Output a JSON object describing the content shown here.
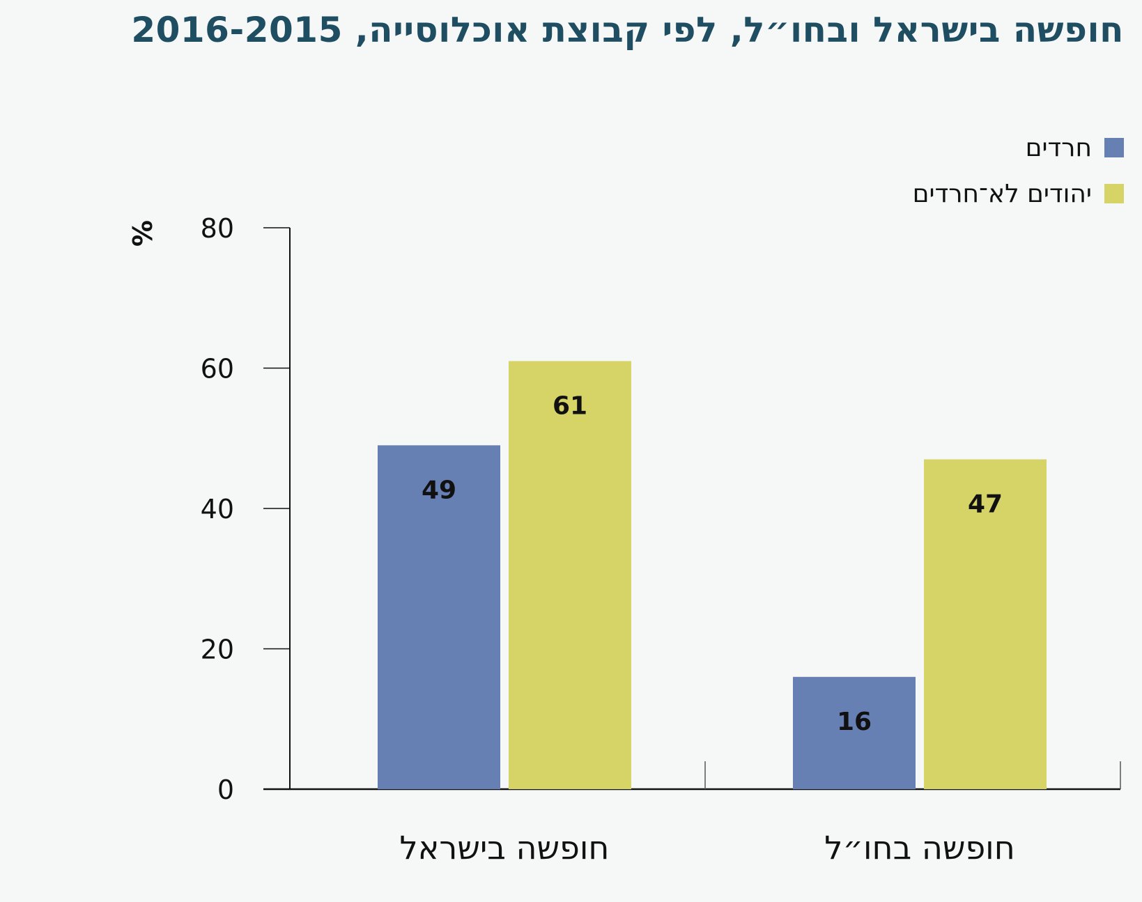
{
  "chart_data": {
    "type": "bar",
    "title": "חופשה בישראל ובחו״ל, לפי קבוצת אוכלוסייה, 2016-2015",
    "ylabel": "%",
    "xlabel": "",
    "ylim": [
      0,
      80
    ],
    "yticks": [
      0,
      20,
      40,
      60,
      80
    ],
    "categories": [
      "חופשה בישראל",
      "חופשה בחו״ל"
    ],
    "series": [
      {
        "name": "חרדים",
        "color": "#6780b4",
        "values": [
          49,
          16
        ]
      },
      {
        "name": "יהודים לא־חרדים",
        "color": "#d6d466",
        "values": [
          61,
          47
        ]
      }
    ],
    "legend_position": "top-right",
    "data_labels": true,
    "grid": false
  }
}
